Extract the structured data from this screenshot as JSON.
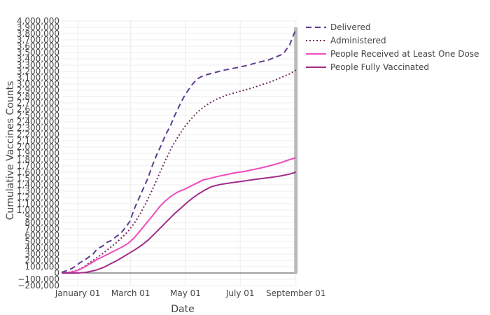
{
  "chart_data": {
    "type": "line",
    "xlabel": "Date",
    "ylabel": "Cumulative Vaccines Counts",
    "x_domain": [
      "2020-12-14",
      "2021-09-02"
    ],
    "x_ticks": [
      {
        "date": "2021-01-01",
        "label": "January 01"
      },
      {
        "date": "2021-03-01",
        "label": "March 01"
      },
      {
        "date": "2021-05-01",
        "label": "May 01"
      },
      {
        "date": "2021-07-01",
        "label": "July 01"
      },
      {
        "date": "2021-09-01",
        "label": "September 01"
      }
    ],
    "ylim": [
      -200000,
      4000000
    ],
    "y_ticks": [
      {
        "value": -200000,
        "label": "−200,000"
      },
      {
        "value": -100000,
        "label": "−100,000"
      },
      {
        "value": 0,
        "label": "0"
      },
      {
        "value": 100000,
        "label": "100,000"
      },
      {
        "value": 200000,
        "label": "200,000"
      },
      {
        "value": 300000,
        "label": "300,000"
      },
      {
        "value": 400000,
        "label": "400,000"
      },
      {
        "value": 500000,
        "label": "500,000"
      },
      {
        "value": 600000,
        "label": "600,000"
      },
      {
        "value": 700000,
        "label": "700,000"
      },
      {
        "value": 800000,
        "label": "800,000"
      },
      {
        "value": 900000,
        "label": "900,000"
      },
      {
        "value": 1000000,
        "label": "1,000,000"
      },
      {
        "value": 1100000,
        "label": "1,100,000"
      },
      {
        "value": 1200000,
        "label": "1,200,000"
      },
      {
        "value": 1300000,
        "label": "1,300,000"
      },
      {
        "value": 1400000,
        "label": "1,400,000"
      },
      {
        "value": 1500000,
        "label": "1,500,000"
      },
      {
        "value": 1600000,
        "label": "1,600,000"
      },
      {
        "value": 1700000,
        "label": "1,700,000"
      },
      {
        "value": 1800000,
        "label": "1,800,000"
      },
      {
        "value": 1900000,
        "label": "1,900,000"
      },
      {
        "value": 2000000,
        "label": "2,000,000"
      },
      {
        "value": 2100000,
        "label": "2,100,000"
      },
      {
        "value": 2200000,
        "label": "2,200,000"
      },
      {
        "value": 2300000,
        "label": "2,300,000"
      },
      {
        "value": 2400000,
        "label": "2,400,000"
      },
      {
        "value": 2500000,
        "label": "2,500,000"
      },
      {
        "value": 2600000,
        "label": "2,600,000"
      },
      {
        "value": 2700000,
        "label": "2,700,000"
      },
      {
        "value": 2800000,
        "label": "2,800,000"
      },
      {
        "value": 2900000,
        "label": "2,900,000"
      },
      {
        "value": 3000000,
        "label": "3,000,000"
      },
      {
        "value": 3100000,
        "label": "3,100,000"
      },
      {
        "value": 3200000,
        "label": "3,200,000"
      },
      {
        "value": 3300000,
        "label": "3,300,000"
      },
      {
        "value": 3400000,
        "label": "3,400,000"
      },
      {
        "value": 3500000,
        "label": "3,500,000"
      },
      {
        "value": 3600000,
        "label": "3,600,000"
      },
      {
        "value": 3700000,
        "label": "3,700,000"
      },
      {
        "value": 3800000,
        "label": "3,800,000"
      },
      {
        "value": 3900000,
        "label": "3,900,000"
      },
      {
        "value": 4000000,
        "label": "4,000,000"
      }
    ],
    "grid": true,
    "legend_position": "top-right",
    "highlight_date": "2021-09-01",
    "series": [
      {
        "name": "Delivered",
        "style": "dash",
        "color": "#5e3c8f",
        "points": [
          [
            "2020-12-14",
            10000
          ],
          [
            "2020-12-20",
            40000
          ],
          [
            "2020-12-25",
            70000
          ],
          [
            "2020-12-30",
            110000
          ],
          [
            "2021-01-03",
            160000
          ],
          [
            "2021-01-08",
            200000
          ],
          [
            "2021-01-13",
            250000
          ],
          [
            "2021-01-18",
            300000
          ],
          [
            "2021-01-23",
            390000
          ],
          [
            "2021-01-28",
            420000
          ],
          [
            "2021-02-03",
            490000
          ],
          [
            "2021-02-08",
            520000
          ],
          [
            "2021-02-13",
            580000
          ],
          [
            "2021-02-18",
            630000
          ],
          [
            "2021-02-23",
            720000
          ],
          [
            "2021-02-28",
            820000
          ],
          [
            "2021-03-05",
            1020000
          ],
          [
            "2021-03-10",
            1180000
          ],
          [
            "2021-03-15",
            1340000
          ],
          [
            "2021-03-20",
            1500000
          ],
          [
            "2021-03-25",
            1700000
          ],
          [
            "2021-03-30",
            1880000
          ],
          [
            "2021-04-04",
            2030000
          ],
          [
            "2021-04-09",
            2200000
          ],
          [
            "2021-04-14",
            2330000
          ],
          [
            "2021-04-19",
            2500000
          ],
          [
            "2021-04-24",
            2650000
          ],
          [
            "2021-04-29",
            2790000
          ],
          [
            "2021-05-04",
            2900000
          ],
          [
            "2021-05-09",
            3000000
          ],
          [
            "2021-05-14",
            3080000
          ],
          [
            "2021-05-19",
            3120000
          ],
          [
            "2021-05-25",
            3150000
          ],
          [
            "2021-06-01",
            3175000
          ],
          [
            "2021-06-10",
            3210000
          ],
          [
            "2021-06-20",
            3240000
          ],
          [
            "2021-07-01",
            3270000
          ],
          [
            "2021-07-10",
            3300000
          ],
          [
            "2021-07-20",
            3340000
          ],
          [
            "2021-08-01",
            3380000
          ],
          [
            "2021-08-10",
            3430000
          ],
          [
            "2021-08-18",
            3480000
          ],
          [
            "2021-08-25",
            3620000
          ],
          [
            "2021-09-01",
            3870000
          ]
        ]
      },
      {
        "name": "Administered",
        "style": "dot",
        "color": "#722b5c",
        "points": [
          [
            "2020-12-14",
            0
          ],
          [
            "2020-12-22",
            10000
          ],
          [
            "2020-12-31",
            40000
          ],
          [
            "2021-01-08",
            100000
          ],
          [
            "2021-01-15",
            170000
          ],
          [
            "2021-01-22",
            240000
          ],
          [
            "2021-01-29",
            310000
          ],
          [
            "2021-02-05",
            390000
          ],
          [
            "2021-02-12",
            470000
          ],
          [
            "2021-02-19",
            560000
          ],
          [
            "2021-02-26",
            660000
          ],
          [
            "2021-03-05",
            790000
          ],
          [
            "2021-03-12",
            950000
          ],
          [
            "2021-03-19",
            1140000
          ],
          [
            "2021-03-26",
            1350000
          ],
          [
            "2021-04-02",
            1580000
          ],
          [
            "2021-04-09",
            1800000
          ],
          [
            "2021-04-16",
            2000000
          ],
          [
            "2021-04-23",
            2170000
          ],
          [
            "2021-04-30",
            2320000
          ],
          [
            "2021-05-07",
            2440000
          ],
          [
            "2021-05-14",
            2550000
          ],
          [
            "2021-05-21",
            2630000
          ],
          [
            "2021-05-28",
            2700000
          ],
          [
            "2021-06-05",
            2760000
          ],
          [
            "2021-06-15",
            2820000
          ],
          [
            "2021-06-25",
            2860000
          ],
          [
            "2021-07-05",
            2900000
          ],
          [
            "2021-07-15",
            2940000
          ],
          [
            "2021-07-25",
            2990000
          ],
          [
            "2021-08-05",
            3040000
          ],
          [
            "2021-08-15",
            3100000
          ],
          [
            "2021-08-25",
            3160000
          ],
          [
            "2021-09-01",
            3220000
          ]
        ]
      },
      {
        "name": "People Received at Least One Dose",
        "style": "solid",
        "color": "#ee4cbf",
        "points": [
          [
            "2020-12-14",
            0
          ],
          [
            "2020-12-22",
            8000
          ],
          [
            "2020-12-31",
            35000
          ],
          [
            "2021-01-08",
            90000
          ],
          [
            "2021-01-15",
            150000
          ],
          [
            "2021-01-22",
            210000
          ],
          [
            "2021-01-29",
            260000
          ],
          [
            "2021-02-05",
            310000
          ],
          [
            "2021-02-12",
            360000
          ],
          [
            "2021-02-19",
            410000
          ],
          [
            "2021-02-26",
            470000
          ],
          [
            "2021-03-05",
            560000
          ],
          [
            "2021-03-12",
            680000
          ],
          [
            "2021-03-19",
            800000
          ],
          [
            "2021-03-26",
            920000
          ],
          [
            "2021-04-02",
            1050000
          ],
          [
            "2021-04-09",
            1150000
          ],
          [
            "2021-04-16",
            1230000
          ],
          [
            "2021-04-23",
            1290000
          ],
          [
            "2021-04-30",
            1330000
          ],
          [
            "2021-05-07",
            1380000
          ],
          [
            "2021-05-14",
            1430000
          ],
          [
            "2021-05-21",
            1480000
          ],
          [
            "2021-05-28",
            1500000
          ],
          [
            "2021-06-05",
            1530000
          ],
          [
            "2021-06-15",
            1560000
          ],
          [
            "2021-06-25",
            1590000
          ],
          [
            "2021-07-05",
            1610000
          ],
          [
            "2021-07-15",
            1640000
          ],
          [
            "2021-07-25",
            1670000
          ],
          [
            "2021-08-05",
            1710000
          ],
          [
            "2021-08-15",
            1750000
          ],
          [
            "2021-08-25",
            1800000
          ],
          [
            "2021-09-01",
            1830000
          ]
        ]
      },
      {
        "name": "People Fully Vaccinated",
        "style": "solid",
        "color": "#a22c8a",
        "points": [
          [
            "2020-12-14",
            0
          ],
          [
            "2021-01-01",
            0
          ],
          [
            "2021-01-10",
            10000
          ],
          [
            "2021-01-20",
            40000
          ],
          [
            "2021-01-30",
            90000
          ],
          [
            "2021-02-07",
            150000
          ],
          [
            "2021-02-14",
            200000
          ],
          [
            "2021-02-21",
            260000
          ],
          [
            "2021-02-28",
            320000
          ],
          [
            "2021-03-07",
            380000
          ],
          [
            "2021-03-14",
            450000
          ],
          [
            "2021-03-21",
            530000
          ],
          [
            "2021-03-28",
            630000
          ],
          [
            "2021-04-04",
            730000
          ],
          [
            "2021-04-11",
            830000
          ],
          [
            "2021-04-18",
            930000
          ],
          [
            "2021-04-25",
            1020000
          ],
          [
            "2021-05-02",
            1110000
          ],
          [
            "2021-05-09",
            1190000
          ],
          [
            "2021-05-16",
            1260000
          ],
          [
            "2021-05-23",
            1320000
          ],
          [
            "2021-05-30",
            1370000
          ],
          [
            "2021-06-07",
            1400000
          ],
          [
            "2021-06-15",
            1420000
          ],
          [
            "2021-06-25",
            1440000
          ],
          [
            "2021-07-05",
            1460000
          ],
          [
            "2021-07-15",
            1480000
          ],
          [
            "2021-07-25",
            1500000
          ],
          [
            "2021-08-05",
            1520000
          ],
          [
            "2021-08-15",
            1540000
          ],
          [
            "2021-08-25",
            1570000
          ],
          [
            "2021-09-01",
            1600000
          ]
        ]
      }
    ]
  }
}
